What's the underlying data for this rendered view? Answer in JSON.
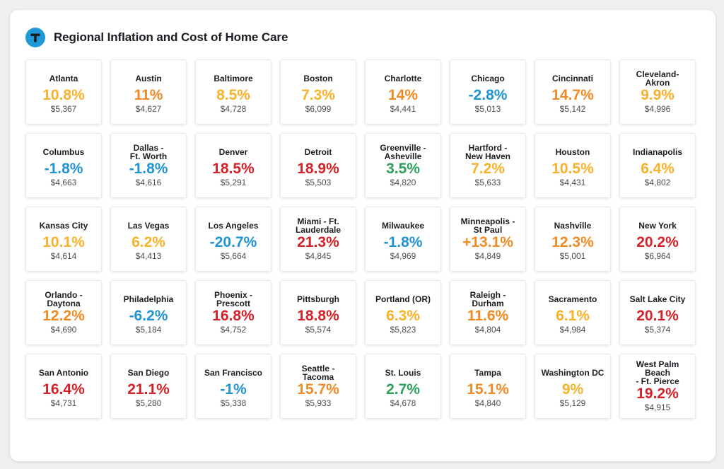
{
  "title": "Regional Inflation and Cost of Home Care",
  "colors": {
    "red": "#d62128",
    "orange": "#f08a24",
    "yellow": "#f7b22a",
    "blue": "#2093d3",
    "green": "#2e9e5b",
    "logo": "#1f9ad6"
  },
  "cities": [
    {
      "name": "Atlanta",
      "pct": "10.8%",
      "cost": "$5,367",
      "color": "#f7b22a"
    },
    {
      "name": "Austin",
      "pct": "11%",
      "cost": "$4,627",
      "color": "#f08a24"
    },
    {
      "name": "Baltimore",
      "pct": "8.5%",
      "cost": "$4,728",
      "color": "#f7b22a"
    },
    {
      "name": "Boston",
      "pct": "7.3%",
      "cost": "$6,099",
      "color": "#f7b22a"
    },
    {
      "name": "Charlotte",
      "pct": "14%",
      "cost": "$4,441",
      "color": "#f08a24"
    },
    {
      "name": "Chicago",
      "pct": "-2.8%",
      "cost": "$5,013",
      "color": "#2093d3"
    },
    {
      "name": "Cincinnati",
      "pct": "14.7%",
      "cost": "$5,142",
      "color": "#f08a24"
    },
    {
      "name": "Cleveland-\nAkron",
      "pct": "9.9%",
      "cost": "$4,996",
      "color": "#f7b22a"
    },
    {
      "name": "Columbus",
      "pct": "-1.8%",
      "cost": "$4,663",
      "color": "#2093d3"
    },
    {
      "name": "Dallas -\nFt. Worth",
      "pct": "-1.8%",
      "cost": "$4,616",
      "color": "#2093d3"
    },
    {
      "name": "Denver",
      "pct": "18.5%",
      "cost": "$5,291",
      "color": "#d62128"
    },
    {
      "name": "Detroit",
      "pct": "18.9%",
      "cost": "$5,503",
      "color": "#d62128"
    },
    {
      "name": "Greenville -\nAsheville",
      "pct": "3.5%",
      "cost": "$4,820",
      "color": "#2e9e5b"
    },
    {
      "name": "Hartford -\nNew Haven",
      "pct": "7.2%",
      "cost": "$5,633",
      "color": "#f7b22a"
    },
    {
      "name": "Houston",
      "pct": "10.5%",
      "cost": "$4,431",
      "color": "#f7b22a"
    },
    {
      "name": "Indianapolis",
      "pct": "6.4%",
      "cost": "$4,802",
      "color": "#f7b22a"
    },
    {
      "name": "Kansas City",
      "pct": "10.1%",
      "cost": "$4,614",
      "color": "#f7b22a"
    },
    {
      "name": "Las Vegas",
      "pct": "6.2%",
      "cost": "$4,413",
      "color": "#f7b22a"
    },
    {
      "name": "Los Angeles",
      "pct": "-20.7%",
      "cost": "$5,664",
      "color": "#2093d3"
    },
    {
      "name": "Miami - Ft.\nLauderdale",
      "pct": "21.3%",
      "cost": "$4,845",
      "color": "#d62128"
    },
    {
      "name": "Milwaukee",
      "pct": "-1.8%",
      "cost": "$4,969",
      "color": "#2093d3"
    },
    {
      "name": "Minneapolis -\nSt Paul",
      "pct": "+13.1%",
      "cost": "$4,849",
      "color": "#f08a24"
    },
    {
      "name": "Nashville",
      "pct": "12.3%",
      "cost": "$5,001",
      "color": "#f08a24"
    },
    {
      "name": "New York",
      "pct": "20.2%",
      "cost": "$6,964",
      "color": "#d62128"
    },
    {
      "name": "Orlando -\nDaytona",
      "pct": "12.2%",
      "cost": "$4,690",
      "color": "#f08a24"
    },
    {
      "name": "Philadelphia",
      "pct": "-6.2%",
      "cost": "$5,184",
      "color": "#2093d3"
    },
    {
      "name": "Phoenix -\nPrescott",
      "pct": "16.8%",
      "cost": "$4,752",
      "color": "#d62128"
    },
    {
      "name": "Pittsburgh",
      "pct": "18.8%",
      "cost": "$5,574",
      "color": "#d62128"
    },
    {
      "name": "Portland (OR)",
      "pct": "6.3%",
      "cost": "$5,823",
      "color": "#f7b22a"
    },
    {
      "name": "Raleigh -\nDurham",
      "pct": "11.6%",
      "cost": "$4,804",
      "color": "#f08a24"
    },
    {
      "name": "Sacramento",
      "pct": "6.1%",
      "cost": "$4,984",
      "color": "#f7b22a"
    },
    {
      "name": "Salt Lake City",
      "pct": "20.1%",
      "cost": "$5,374",
      "color": "#d62128"
    },
    {
      "name": "San Antonio",
      "pct": "16.4%",
      "cost": "$4,731",
      "color": "#d62128"
    },
    {
      "name": "San Diego",
      "pct": "21.1%",
      "cost": "$5,280",
      "color": "#d62128"
    },
    {
      "name": "San Francisco",
      "pct": "-1%",
      "cost": "$5,338",
      "color": "#2093d3"
    },
    {
      "name": "Seattle -\nTacoma",
      "pct": "15.7%",
      "cost": "$5,933",
      "color": "#f08a24"
    },
    {
      "name": "St. Louis",
      "pct": "2.7%",
      "cost": "$4,678",
      "color": "#2e9e5b"
    },
    {
      "name": "Tampa",
      "pct": "15.1%",
      "cost": "$4,840",
      "color": "#f08a24"
    },
    {
      "name": "Washington DC",
      "pct": "9%",
      "cost": "$5,129",
      "color": "#f7b22a"
    },
    {
      "name": "West Palm Beach\n- Ft. Pierce",
      "pct": "19.2%",
      "cost": "$4,915",
      "color": "#d62128"
    }
  ]
}
